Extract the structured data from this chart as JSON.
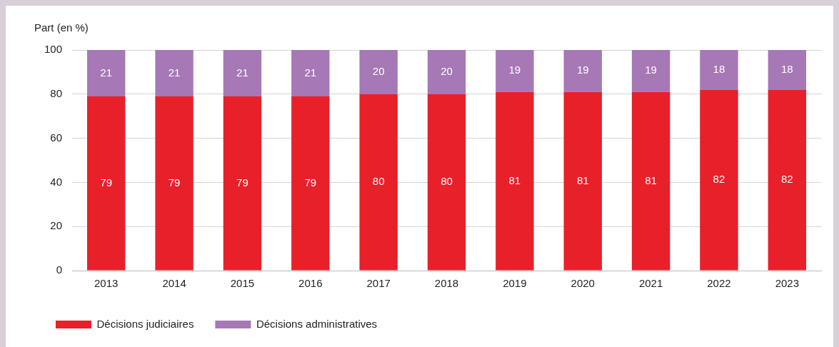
{
  "chart_data": {
    "type": "bar",
    "stacked": true,
    "ylabel": "Part (en %)",
    "categories": [
      "2013",
      "2014",
      "2015",
      "2016",
      "2017",
      "2018",
      "2019",
      "2020",
      "2021",
      "2022",
      "2023"
    ],
    "series": [
      {
        "name": "Décisions judiciaires",
        "color": "#e8202a",
        "values": [
          79,
          79,
          79,
          79,
          80,
          80,
          81,
          81,
          81,
          82,
          82
        ]
      },
      {
        "name": "Décisions administratives",
        "color": "#a678b6",
        "values": [
          21,
          21,
          21,
          21,
          20,
          20,
          19,
          19,
          19,
          18,
          18
        ]
      }
    ],
    "ylim": [
      0,
      100
    ],
    "yticks": [
      0,
      20,
      40,
      60,
      80,
      100
    ],
    "grid": "y",
    "legend": "bottom left",
    "data_labels": true
  }
}
